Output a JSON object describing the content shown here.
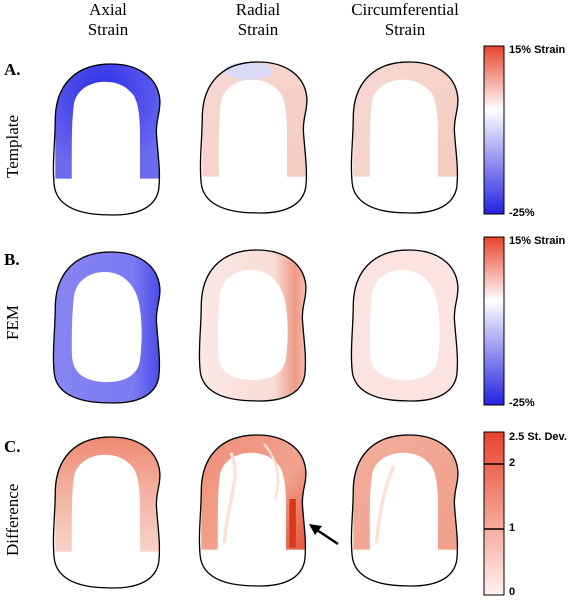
{
  "columns": [
    {
      "line1": "Axial",
      "line2": "Strain"
    },
    {
      "line1": "Radial",
      "line2": "Strain"
    },
    {
      "line1": "Circumferential",
      "line2": "Strain"
    }
  ],
  "rows": [
    {
      "letter": "A.",
      "label": "Template"
    },
    {
      "letter": "B.",
      "label": "FEM"
    },
    {
      "letter": "C.",
      "label": "Difference"
    }
  ],
  "colorbars": [
    {
      "top_label": "15% Strain",
      "bottom_label": "-25%"
    },
    {
      "top_label": "15% Strain",
      "bottom_label": "-25%"
    },
    {
      "top_label": "2.5 St. Dev.",
      "tick_labels": [
        "2",
        "1",
        "0"
      ]
    }
  ],
  "colors": {
    "max": "#e8432a",
    "mid": "#ffffff",
    "min": "#2222e0"
  }
}
